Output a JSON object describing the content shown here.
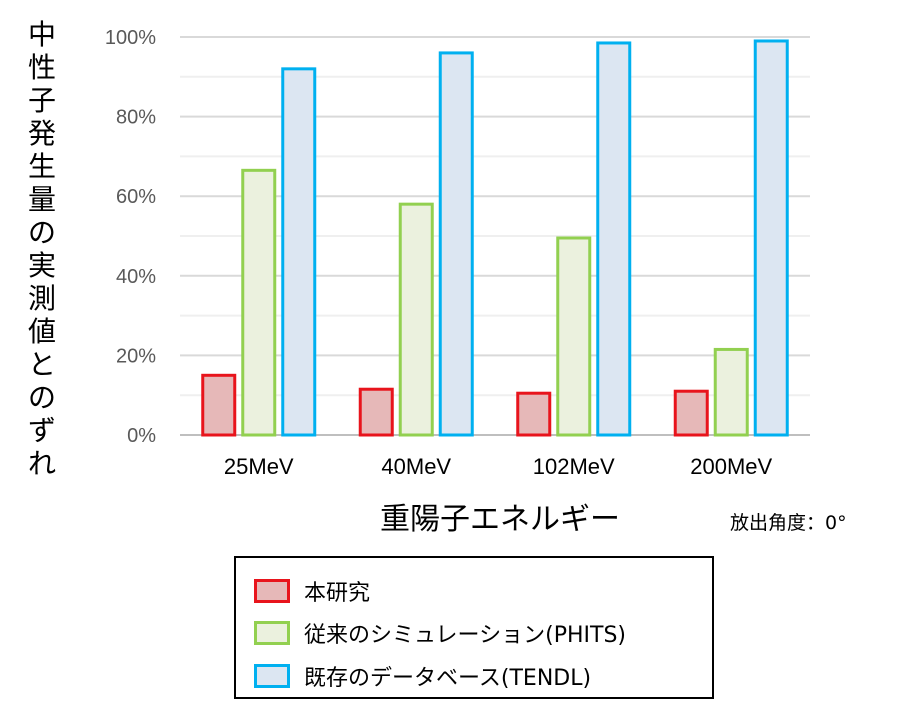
{
  "chart_data": {
    "type": "bar",
    "categories": [
      "25MeV",
      "40MeV",
      "102MeV",
      "200MeV"
    ],
    "series": [
      {
        "name": "本研究",
        "values": [
          15,
          11.5,
          10.5,
          11
        ],
        "fill": "#e6b8b8",
        "stroke": "#e8141c"
      },
      {
        "name": "従来のシミュレーション(PHITS)",
        "values": [
          66.5,
          58,
          49.5,
          21.5
        ],
        "fill": "#ebf1de",
        "stroke": "#92d050"
      },
      {
        "name": "既存のデータベース(TENDL)",
        "values": [
          92,
          96,
          98.5,
          99
        ],
        "fill": "#dce6f2",
        "stroke": "#00b0f0"
      }
    ],
    "ylim": [
      0,
      100
    ],
    "yticks": [
      "0%",
      "20%",
      "40%",
      "60%",
      "80%",
      "100%"
    ],
    "ylabel": "中性子発生量の実測値とのずれ",
    "xlabel": "重陽子エネルギー",
    "note": "放出角度：0°",
    "grid": true,
    "legend_position": "bottom"
  }
}
